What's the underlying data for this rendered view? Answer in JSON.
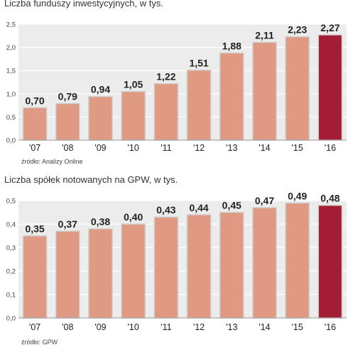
{
  "colors": {
    "bar": "#e09a84",
    "bar_highlight": "#a31e35",
    "bar_stroke": "#d0d0d0",
    "plot_bg": "#ececec",
    "grid": "#ffffff"
  },
  "chart_data": [
    {
      "type": "bar",
      "title": "Liczba funduszy inwestycyjnych, w tys.",
      "source": "źródło: Analizy Online",
      "categories": [
        "'07",
        "'08",
        "'09",
        "'10",
        "'11",
        "'12",
        "'13",
        "'14",
        "'15",
        "'16"
      ],
      "values": [
        0.7,
        0.79,
        0.94,
        1.05,
        1.22,
        1.51,
        1.88,
        2.11,
        2.23,
        2.27
      ],
      "value_labels": [
        "0,70",
        "0,79",
        "0,94",
        "1,05",
        "1,22",
        "1,51",
        "1,88",
        "2,11",
        "2,23",
        "2,27"
      ],
      "ylim": [
        0,
        2.5
      ],
      "yticks": [
        0,
        0.5,
        1.0,
        1.5,
        2.0,
        2.5
      ],
      "ytick_labels": [
        "0,0",
        "0,5",
        "1,0",
        "1,5",
        "2,0",
        "2,5"
      ],
      "highlight_index": 9,
      "grid": true
    },
    {
      "type": "bar",
      "title": "Liczba spółek notowanych na GPW, w tys.",
      "source": "źródło: GPW",
      "categories": [
        "'07",
        "'08",
        "'09",
        "'10",
        "'11",
        "'12",
        "'13",
        "'14",
        "'15",
        "'16"
      ],
      "values": [
        0.35,
        0.37,
        0.38,
        0.4,
        0.43,
        0.44,
        0.45,
        0.47,
        0.49,
        0.48
      ],
      "value_labels": [
        "0,35",
        "0,37",
        "0,38",
        "0,40",
        "0,43",
        "0,44",
        "0,45",
        "0,47",
        "0,49",
        "0,48"
      ],
      "ylim": [
        0,
        0.5
      ],
      "yticks": [
        0,
        0.1,
        0.2,
        0.3,
        0.4,
        0.5
      ],
      "ytick_labels": [
        "0,0",
        "0,1",
        "0,2",
        "0,3",
        "0,4",
        "0,5"
      ],
      "highlight_index": 9,
      "grid": true
    }
  ]
}
